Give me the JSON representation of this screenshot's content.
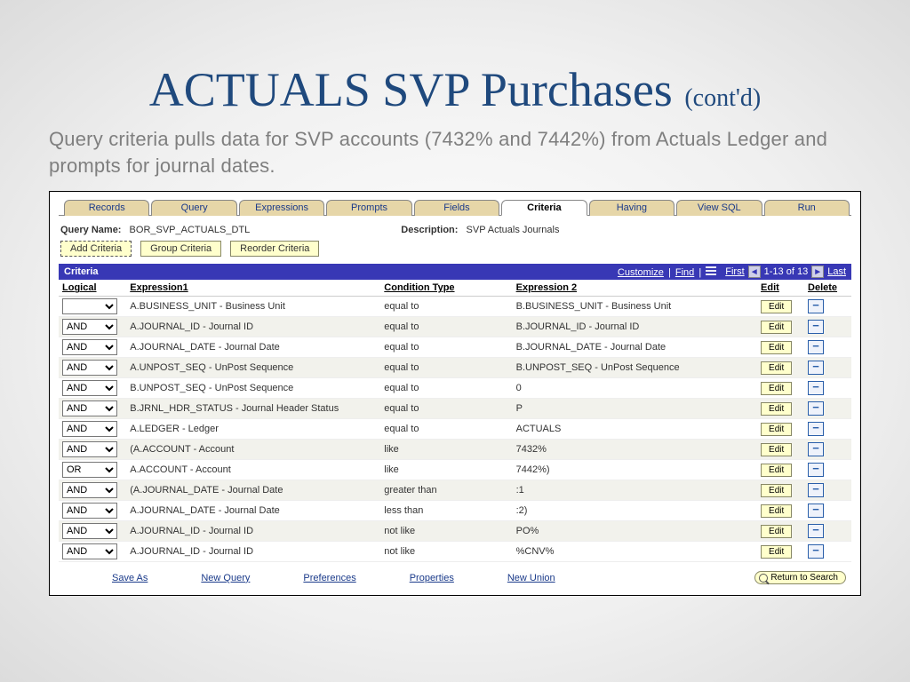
{
  "slide": {
    "title_main": "ACTUALS SVP Purchases ",
    "title_suffix": "(cont'd)",
    "subtitle": "Query criteria pulls data for SVP accounts (7432% and 7442%) from Actuals Ledger and prompts for journal dates."
  },
  "tabs": {
    "items": [
      "Records",
      "Query",
      "Expressions",
      "Prompts",
      "Fields",
      "Criteria",
      "Having",
      "View SQL",
      "Run"
    ],
    "active": "Criteria"
  },
  "meta": {
    "query_name_label": "Query Name:",
    "query_name_value": "BOR_SVP_ACTUALS_DTL",
    "description_label": "Description:",
    "description_value": "SVP Actuals Journals"
  },
  "buttons": {
    "add_criteria": "Add Criteria",
    "group_criteria": "Group Criteria",
    "reorder_criteria": "Reorder Criteria",
    "edit": "Edit",
    "return_to_search": "Return to Search"
  },
  "grid_bar": {
    "title": "Criteria",
    "customize": "Customize",
    "find": "Find",
    "first": "First",
    "range": "1-13 of 13",
    "last": "Last"
  },
  "columns": {
    "logical": "Logical",
    "expr1": "Expression1",
    "cond": "Condition Type",
    "expr2": "Expression 2",
    "edit": "Edit",
    "del": "Delete"
  },
  "rows": [
    {
      "logical": "",
      "expr1": "A.BUSINESS_UNIT - Business Unit",
      "cond": "equal to",
      "expr2": "B.BUSINESS_UNIT - Business Unit"
    },
    {
      "logical": "AND",
      "expr1": "A.JOURNAL_ID - Journal ID",
      "cond": "equal to",
      "expr2": "B.JOURNAL_ID - Journal ID"
    },
    {
      "logical": "AND",
      "expr1": "A.JOURNAL_DATE - Journal Date",
      "cond": "equal to",
      "expr2": "B.JOURNAL_DATE - Journal Date"
    },
    {
      "logical": "AND",
      "expr1": "A.UNPOST_SEQ - UnPost Sequence",
      "cond": "equal to",
      "expr2": "B.UNPOST_SEQ - UnPost Sequence"
    },
    {
      "logical": "AND",
      "expr1": "B.UNPOST_SEQ - UnPost Sequence",
      "cond": "equal to",
      "expr2": "0"
    },
    {
      "logical": "AND",
      "expr1": "B.JRNL_HDR_STATUS - Journal Header Status",
      "cond": "equal to",
      "expr2": "P"
    },
    {
      "logical": "AND",
      "expr1": "A.LEDGER - Ledger",
      "cond": "equal to",
      "expr2": "ACTUALS"
    },
    {
      "logical": "AND",
      "expr1": "(A.ACCOUNT - Account",
      "cond": "like",
      "expr2": "7432%"
    },
    {
      "logical": "OR",
      "expr1": "A.ACCOUNT - Account",
      "cond": "like",
      "expr2": "7442%)"
    },
    {
      "logical": "AND",
      "expr1": "(A.JOURNAL_DATE - Journal Date",
      "cond": "greater than",
      "expr2": ":1"
    },
    {
      "logical": "AND",
      "expr1": "A.JOURNAL_DATE - Journal Date",
      "cond": "less than",
      "expr2": ":2)"
    },
    {
      "logical": "AND",
      "expr1": "A.JOURNAL_ID - Journal ID",
      "cond": "not like",
      "expr2": "PO%"
    },
    {
      "logical": "AND",
      "expr1": "A.JOURNAL_ID - Journal ID",
      "cond": "not like",
      "expr2": "%CNV%"
    }
  ],
  "bottom_links": {
    "save_as": "Save As",
    "new_query": "New Query",
    "preferences": "Preferences",
    "properties": "Properties",
    "new_union": "New Union"
  },
  "colors": {
    "title": "#1f497d",
    "bar": "#3838b5",
    "tab_bg": "#e6d6a8",
    "btn_bg": "#ffffcc"
  }
}
